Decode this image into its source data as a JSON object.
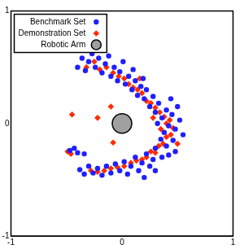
{
  "chart_data": {
    "type": "scatter",
    "legend": "upper left",
    "grid": false,
    "xlim": [
      -1,
      1
    ],
    "xticks": [
      -1,
      0,
      1
    ],
    "ylim": [
      -1,
      1
    ],
    "yticks": [
      -1,
      0,
      1
    ],
    "series": [
      {
        "name": "Benchmark Set",
        "color": "#1f1fff",
        "marker": "circle",
        "values": [
          [
            -0.4,
            0.5
          ],
          [
            -0.36,
            0.58
          ],
          [
            -0.33,
            0.47
          ],
          [
            -0.3,
            0.55
          ],
          [
            -0.27,
            0.62
          ],
          [
            -0.24,
            0.5
          ],
          [
            -0.21,
            0.58
          ],
          [
            -0.18,
            0.45
          ],
          [
            -0.15,
            0.53
          ],
          [
            -0.12,
            0.6
          ],
          [
            -0.1,
            0.42
          ],
          [
            -0.07,
            0.5
          ],
          [
            -0.04,
            0.38
          ],
          [
            -0.02,
            0.46
          ],
          [
            0.01,
            0.55
          ],
          [
            0.03,
            0.35
          ],
          [
            0.06,
            0.42
          ],
          [
            0.09,
            0.3
          ],
          [
            0.12,
            0.38
          ],
          [
            0.14,
            0.25
          ],
          [
            0.17,
            0.33
          ],
          [
            0.2,
            0.22
          ],
          [
            0.22,
            0.3
          ],
          [
            0.25,
            0.15
          ],
          [
            0.28,
            0.24
          ],
          [
            0.19,
            0.4
          ],
          [
            0.1,
            0.48
          ],
          [
            0.3,
            0.1
          ],
          [
            0.33,
            0.18
          ],
          [
            0.36,
            0.05
          ],
          [
            0.4,
            0.12
          ],
          [
            0.42,
            -0.02
          ],
          [
            0.45,
            0.08
          ],
          [
            0.48,
            -0.05
          ],
          [
            0.52,
            0.03
          ],
          [
            0.55,
            -0.1
          ],
          [
            0.38,
            -0.08
          ],
          [
            0.32,
            0.0
          ],
          [
            0.5,
            0.15
          ],
          [
            0.44,
            0.22
          ],
          [
            0.46,
            -0.15
          ],
          [
            0.4,
            -0.2
          ],
          [
            0.35,
            -0.14
          ],
          [
            0.3,
            -0.22
          ],
          [
            0.42,
            -0.28
          ],
          [
            0.36,
            -0.3
          ],
          [
            0.28,
            -0.32
          ],
          [
            0.22,
            -0.27
          ],
          [
            0.25,
            -0.38
          ],
          [
            0.18,
            -0.35
          ],
          [
            0.12,
            -0.3
          ],
          [
            0.15,
            -0.42
          ],
          [
            0.08,
            -0.38
          ],
          [
            0.02,
            -0.34
          ],
          [
            0.05,
            -0.45
          ],
          [
            -0.02,
            -0.42
          ],
          [
            -0.06,
            -0.36
          ],
          [
            -0.1,
            -0.44
          ],
          [
            -0.14,
            -0.38
          ],
          [
            -0.18,
            -0.46
          ],
          [
            -0.22,
            -0.4
          ],
          [
            -0.26,
            -0.44
          ],
          [
            -0.3,
            -0.38
          ],
          [
            -0.34,
            -0.45
          ],
          [
            -0.38,
            -0.41
          ],
          [
            0.2,
            -0.48
          ],
          [
            0.3,
            -0.42
          ],
          [
            0.48,
            -0.25
          ],
          [
            -0.47,
            -0.24
          ],
          [
            -0.43,
            -0.22
          ],
          [
            -0.4,
            -0.26
          ],
          [
            -0.34,
            -0.27
          ]
        ]
      },
      {
        "name": "Demonstration Set",
        "color": "#ff2a00",
        "marker": "diamond",
        "values": [
          [
            -0.32,
            0.5
          ],
          [
            -0.25,
            0.55
          ],
          [
            -0.2,
            0.48
          ],
          [
            -0.14,
            0.5
          ],
          [
            -0.08,
            0.45
          ],
          [
            -0.03,
            0.42
          ],
          [
            0.02,
            0.4
          ],
          [
            0.06,
            0.35
          ],
          [
            0.1,
            0.32
          ],
          [
            0.14,
            0.3
          ],
          [
            0.18,
            0.27
          ],
          [
            0.22,
            0.2
          ],
          [
            0.26,
            0.18
          ],
          [
            0.3,
            0.14
          ],
          [
            0.34,
            0.1
          ],
          [
            0.38,
            0.06
          ],
          [
            0.4,
            0.0
          ],
          [
            0.43,
            0.03
          ],
          [
            0.46,
            -0.04
          ],
          [
            0.44,
            -0.1
          ],
          [
            0.4,
            -0.12
          ],
          [
            0.37,
            -0.18
          ],
          [
            0.33,
            -0.2
          ],
          [
            0.3,
            -0.26
          ],
          [
            0.26,
            -0.25
          ],
          [
            0.22,
            -0.3
          ],
          [
            0.18,
            -0.32
          ],
          [
            0.13,
            -0.33
          ],
          [
            0.08,
            -0.35
          ],
          [
            0.02,
            -0.38
          ],
          [
            -0.04,
            -0.39
          ],
          [
            -0.1,
            -0.4
          ],
          [
            -0.16,
            -0.42
          ],
          [
            -0.22,
            -0.43
          ],
          [
            -0.28,
            -0.42
          ],
          [
            0.35,
            -0.05
          ],
          [
            0.28,
            0.05
          ],
          [
            0.5,
            -0.18
          ],
          [
            0.16,
            0.4
          ],
          [
            -0.45,
            0.08
          ],
          [
            -0.22,
            0.05
          ],
          [
            -0.1,
            0.15
          ],
          [
            -0.08,
            -0.17
          ],
          [
            -0.49,
            -0.25
          ],
          [
            -0.46,
            -0.27
          ]
        ]
      },
      {
        "name": "Robotic Arm",
        "color": "#a0a0a0",
        "marker": "sphere",
        "values": [
          [
            0,
            0
          ]
        ]
      }
    ]
  }
}
